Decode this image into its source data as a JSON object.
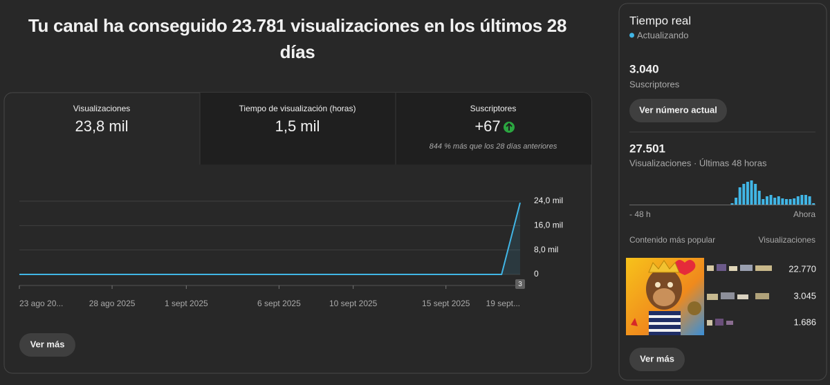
{
  "heading": "Tu canal ha conseguido 23.781 visualizaciones en los últimos 28 días",
  "metrics": [
    {
      "label": "Visualizaciones",
      "value": "23,8 mil"
    },
    {
      "label": "Tiempo de visualización (horas)",
      "value": "1,5 mil"
    },
    {
      "label": "Suscriptores",
      "value": "+67",
      "note": "844 % más que los 28 días anteriores"
    }
  ],
  "chart_data": {
    "type": "line",
    "color": "#41b6e6",
    "categories": [
      "23 ago 20...",
      null,
      null,
      null,
      null,
      "28 ago 2025",
      null,
      null,
      null,
      "1 sept 2025",
      null,
      null,
      null,
      null,
      "6 sept 2025",
      null,
      null,
      null,
      "10 sept 2025",
      null,
      null,
      null,
      null,
      "15 sept 2025",
      null,
      null,
      null,
      "19 sept..."
    ],
    "values": [
      0,
      0,
      0,
      0,
      0,
      0,
      0,
      0,
      0,
      0,
      0,
      0,
      0,
      0,
      0,
      0,
      0,
      0,
      0,
      0,
      0,
      0,
      0,
      0,
      0,
      0,
      0,
      23500
    ],
    "ylim": [
      0,
      24000
    ],
    "yticks": [
      0,
      {
        "value": 8000,
        "label": "8,0 mil"
      },
      {
        "value": 16000,
        "label": "16,0 mil"
      },
      {
        "value": 24000,
        "label": "24,0 mil"
      }
    ],
    "grid": true,
    "annotation": "3"
  },
  "more_button": "Ver más",
  "realtime": {
    "title": "Tiempo real",
    "status": "Actualizando",
    "subscribers": "3.040",
    "subscribers_label": "Suscriptores",
    "button": "Ver número actual",
    "views": "27.501",
    "views_label": "Visualizaciones · Últimas 48 horas",
    "views_chart": {
      "type": "bar",
      "color": "#41b6e6",
      "values": [
        0,
        0,
        0,
        0,
        0,
        0,
        0,
        0,
        0,
        0,
        0,
        0,
        0,
        0,
        0,
        0,
        0,
        0,
        0,
        0,
        0,
        0,
        0,
        0,
        0,
        0,
        2,
        10,
        25,
        30,
        33,
        35,
        30,
        20,
        8,
        12,
        14,
        10,
        12,
        9,
        8,
        8,
        9,
        12,
        14,
        14,
        12,
        2
      ]
    },
    "start_label": "- 48 h",
    "end_label": "Ahora",
    "top_content_label": "Contenido más popular",
    "top_content_metric": "Visualizaciones",
    "top_content": [
      {
        "views": "22.770"
      },
      {
        "views": "3.045"
      },
      {
        "views": "1.686"
      }
    ],
    "more_button": "Ver más"
  }
}
